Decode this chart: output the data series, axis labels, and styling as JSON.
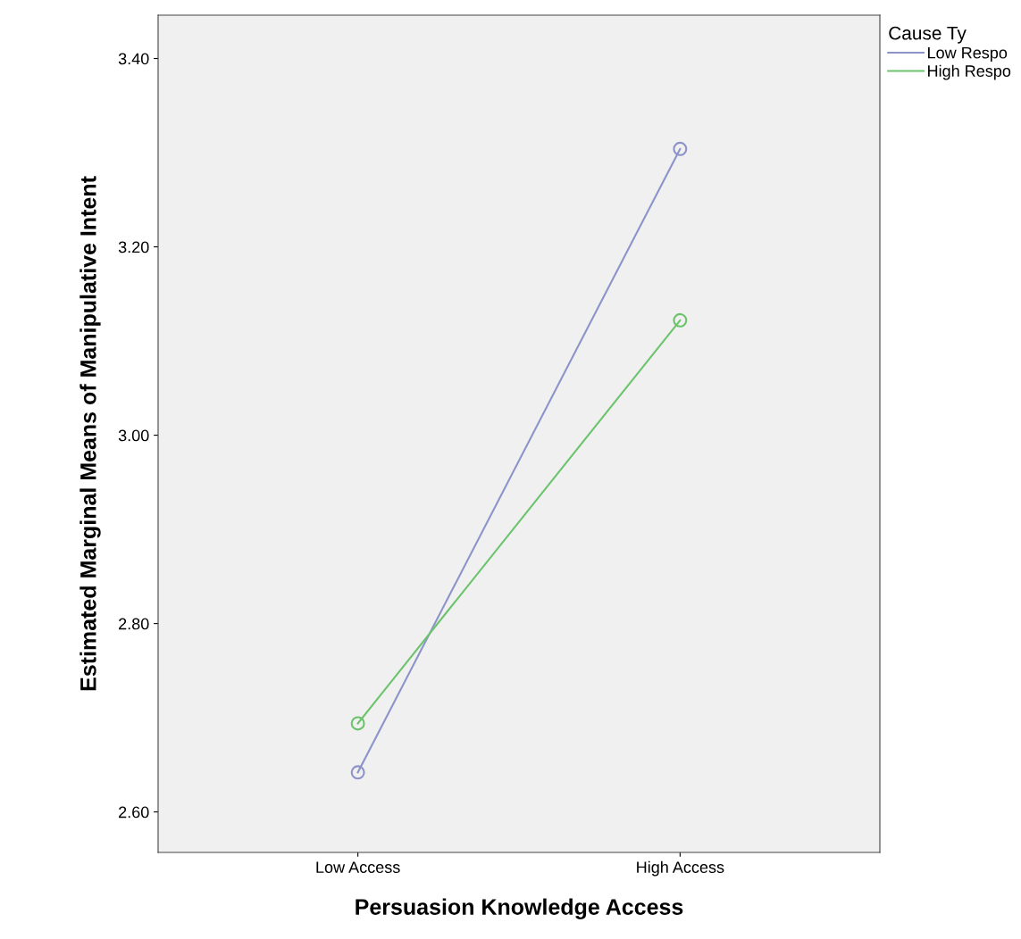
{
  "chart_data": {
    "type": "line",
    "xlabel": "Persuasion Knowledge Access",
    "ylabel": "Estimated Marginal Means of Manipulative Intent",
    "categories": [
      "Low Access",
      "High Access"
    ],
    "series": [
      {
        "name": "Low Respo",
        "color": "#8b93c9",
        "values": [
          2.642,
          3.304
        ]
      },
      {
        "name": "High Respo",
        "color": "#6cc36c",
        "values": [
          2.694,
          3.122
        ]
      }
    ],
    "legend_title": "Cause Ty",
    "legend": "top right",
    "marker": "circle",
    "line_style": "solid",
    "grid": false,
    "ylim": [
      2.557,
      3.446
    ],
    "yticks": [
      {
        "value": 2.6,
        "label": "2.60"
      },
      {
        "value": 2.8,
        "label": "2.80"
      },
      {
        "value": 3.0,
        "label": "3.00"
      },
      {
        "value": 3.2,
        "label": "3.20"
      },
      {
        "value": 3.4,
        "label": "3.40"
      }
    ]
  }
}
